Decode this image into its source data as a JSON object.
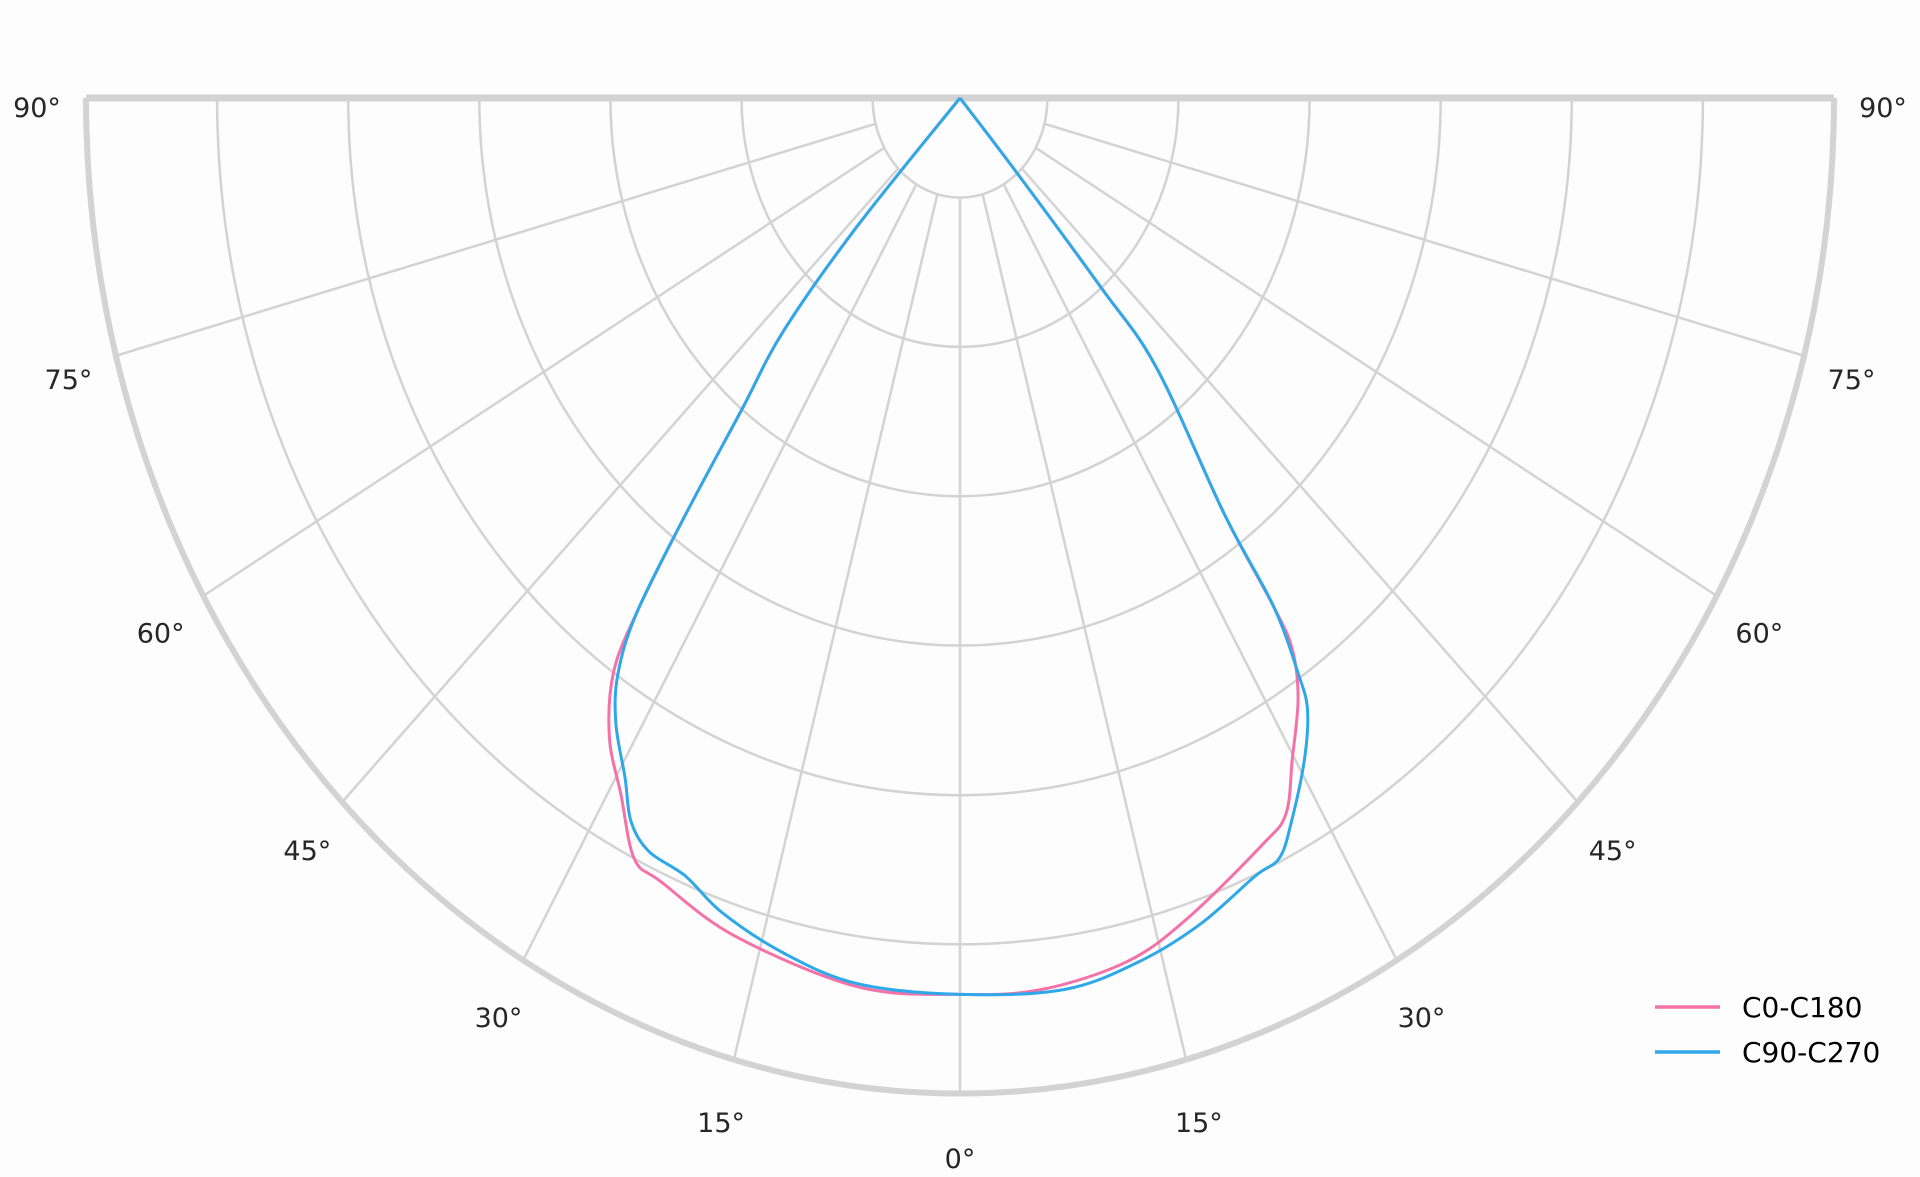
{
  "chart_data": {
    "type": "polar",
    "subtype": "luminous-intensity-distribution",
    "angle_unit": "degrees",
    "angle_ticks": [
      -90,
      -75,
      -60,
      -45,
      -30,
      -15,
      0,
      15,
      30,
      45,
      60,
      75,
      90
    ],
    "angle_tick_labels": [
      "90°",
      "75°",
      "60°",
      "45°",
      "30°",
      "15°",
      "0°",
      "15°",
      "30°",
      "45°",
      "60°",
      "75°",
      "90°"
    ],
    "radial_rings_relative": [
      0.1,
      0.25,
      0.4,
      0.55,
      0.7,
      0.85,
      1.0
    ],
    "radial_tick_labels_shown": false,
    "grid": true,
    "legend_position": "bottom-right",
    "series": [
      {
        "name": "C0-C180",
        "color": "#f472a8",
        "points": [
          [
            -90,
            0
          ],
          [
            -42.4,
            0.175
          ],
          [
            -40.8,
            0.309
          ],
          [
            -38.6,
            0.4
          ],
          [
            -36.9,
            0.523
          ],
          [
            -35.6,
            0.635
          ],
          [
            -34.5,
            0.7
          ],
          [
            -32,
            0.757
          ],
          [
            -29,
            0.8
          ],
          [
            -26,
            0.85
          ],
          [
            -23.5,
            0.858
          ],
          [
            -17,
            0.88
          ],
          [
            -7.5,
            0.9
          ],
          [
            0,
            0.9
          ],
          [
            5.9,
            0.9
          ],
          [
            12.4,
            0.888
          ],
          [
            17.5,
            0.864
          ],
          [
            24.7,
            0.826
          ],
          [
            27.4,
            0.81
          ],
          [
            29.8,
            0.765
          ],
          [
            32.7,
            0.716
          ],
          [
            34.5,
            0.671
          ],
          [
            35.1,
            0.624
          ],
          [
            35.9,
            0.516
          ],
          [
            39.7,
            0.352
          ],
          [
            40.3,
            0.25
          ],
          [
            40.9,
            0.098
          ],
          [
            90,
            0
          ]
        ]
      },
      {
        "name": "C90-C270",
        "color": "#2ea8e8",
        "points": [
          [
            -90,
            0
          ],
          [
            -42.4,
            0.175
          ],
          [
            -40.8,
            0.309
          ],
          [
            -38.6,
            0.4
          ],
          [
            -36.9,
            0.523
          ],
          [
            -35.6,
            0.635
          ],
          [
            -34.1,
            0.698
          ],
          [
            -32.1,
            0.741
          ],
          [
            -29.3,
            0.783
          ],
          [
            -27.4,
            0.818
          ],
          [
            -25.2,
            0.836
          ],
          [
            -21.9,
            0.842
          ],
          [
            -18.4,
            0.862
          ],
          [
            -13.2,
            0.882
          ],
          [
            -7.5,
            0.897
          ],
          [
            0,
            0.9
          ],
          [
            7.6,
            0.903
          ],
          [
            13.3,
            0.891
          ],
          [
            18.3,
            0.874
          ],
          [
            23.4,
            0.851
          ],
          [
            25.6,
            0.846
          ],
          [
            27.6,
            0.819
          ],
          [
            30.7,
            0.772
          ],
          [
            32.9,
            0.732
          ],
          [
            33.8,
            0.696
          ],
          [
            35.1,
            0.624
          ],
          [
            35.9,
            0.516
          ],
          [
            39.7,
            0.352
          ],
          [
            40.3,
            0.25
          ],
          [
            40.9,
            0.098
          ],
          [
            90,
            0
          ]
        ]
      }
    ],
    "colors": {
      "grid": "#d3d3d3",
      "text": "#262626"
    }
  }
}
